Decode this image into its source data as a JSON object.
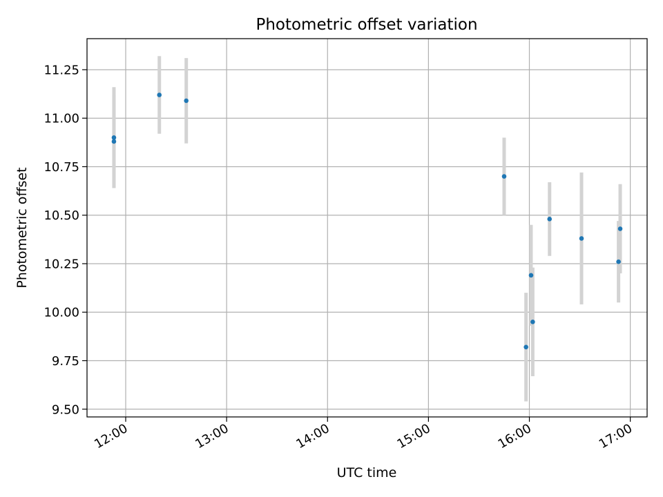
{
  "chart_data": {
    "type": "scatter",
    "title": "Photometric offset variation",
    "xlabel": "UTC time",
    "ylabel": "Photometric offset",
    "x_axis": "time",
    "xlim": [
      "11:37",
      "17:10"
    ],
    "ylim": [
      9.46,
      11.41
    ],
    "x_ticks": [
      "12:00",
      "13:00",
      "14:00",
      "15:00",
      "16:00",
      "17:00"
    ],
    "y_ticks": [
      "9.50",
      "9.75",
      "10.00",
      "10.25",
      "10.50",
      "10.75",
      "11.00",
      "11.25"
    ],
    "grid": true,
    "legend": "none",
    "series": [
      {
        "marker_color": "#1f77b4",
        "errorbar_color": "#d3d3d3",
        "points": [
          {
            "x": "11:53",
            "y": 10.9,
            "err": 0.26
          },
          {
            "x": "11:53",
            "y": 10.88,
            "err": 0.24
          },
          {
            "x": "12:20",
            "y": 11.12,
            "err": 0.2
          },
          {
            "x": "12:36",
            "y": 11.09,
            "err": 0.22
          },
          {
            "x": "15:45",
            "y": 10.7,
            "err": 0.2
          },
          {
            "x": "15:58",
            "y": 9.82,
            "err": 0.28
          },
          {
            "x": "16:01",
            "y": 10.19,
            "err": 0.26
          },
          {
            "x": "16:02",
            "y": 9.95,
            "err": 0.28
          },
          {
            "x": "16:12",
            "y": 10.48,
            "err": 0.19
          },
          {
            "x": "16:31",
            "y": 10.38,
            "err": 0.34
          },
          {
            "x": "16:53",
            "y": 10.26,
            "err": 0.21
          },
          {
            "x": "16:54",
            "y": 10.43,
            "err": 0.23
          }
        ]
      }
    ]
  }
}
